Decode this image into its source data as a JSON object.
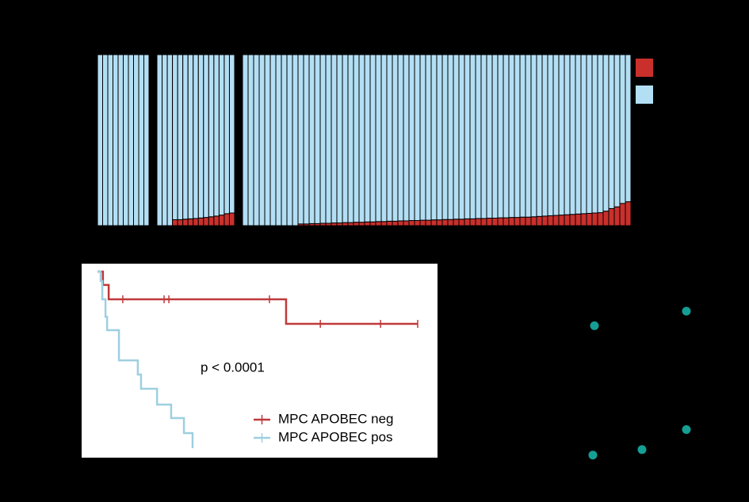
{
  "chart_data": [
    {
      "type": "stacked_bar",
      "categories": [
        null,
        null,
        null,
        null,
        null,
        null,
        null,
        null,
        null,
        null
      ],
      "ylim": [
        0,
        100
      ],
      "series": [
        {
          "color": "#c9302c",
          "values": [
            0,
            0,
            0,
            0,
            0,
            0,
            0,
            0,
            0,
            0
          ]
        },
        {
          "color": "#b3dff5",
          "values": [
            100,
            100,
            100,
            100,
            100,
            100,
            100,
            100,
            100,
            100
          ]
        }
      ]
    },
    {
      "type": "stacked_bar",
      "categories": [
        null,
        null,
        null,
        null,
        null,
        null,
        null,
        null,
        null,
        null,
        null,
        null,
        null,
        null,
        null
      ],
      "ylim": [
        0,
        100
      ],
      "series": [
        {
          "color": "#c9302c",
          "values": [
            0,
            0,
            0,
            3.5,
            3.5,
            3.8,
            4,
            4.2,
            4.5,
            4.8,
            5.2,
            5.6,
            6.2,
            7,
            7.4
          ]
        },
        {
          "color": "#b3dff5",
          "values": [
            100,
            100,
            100,
            96.5,
            96.5,
            96.2,
            96,
            95.8,
            95.5,
            95.2,
            94.8,
            94.4,
            93.8,
            93,
            92.6
          ]
        }
      ]
    },
    {
      "type": "stacked_bar",
      "categories": [
        null,
        null,
        null,
        null,
        null,
        null,
        null,
        null,
        null,
        null,
        null,
        null,
        null,
        null,
        null,
        null,
        null,
        null,
        null,
        null,
        null,
        null,
        null,
        null,
        null,
        null,
        null,
        null,
        null,
        null,
        null,
        null,
        null,
        null,
        null,
        null,
        null,
        null,
        null,
        null,
        null,
        null,
        null,
        null,
        null,
        null,
        null,
        null,
        null,
        null,
        null,
        null,
        null,
        null,
        null,
        null,
        null,
        null,
        null,
        null,
        null,
        null,
        null,
        null,
        null,
        null,
        null,
        null,
        null,
        null
      ],
      "ylim": [
        0,
        100
      ],
      "series": [
        {
          "color": "#c9302c",
          "values": [
            0,
            0,
            0,
            0,
            0,
            0,
            0,
            0,
            0,
            0,
            1,
            1,
            1.2,
            1.2,
            1.4,
            1.4,
            1.6,
            1.6,
            1.8,
            1.8,
            2,
            2,
            2.2,
            2.2,
            2.4,
            2.4,
            2.6,
            2.6,
            2.8,
            2.8,
            3,
            3,
            3.2,
            3.2,
            3.4,
            3.4,
            3.6,
            3.6,
            3.8,
            3.8,
            4,
            4,
            4.2,
            4.2,
            4.4,
            4.4,
            4.6,
            4.6,
            4.8,
            4.8,
            5,
            5,
            5.2,
            5.4,
            5.6,
            5.8,
            6,
            6.2,
            6.4,
            6.6,
            6.8,
            7,
            7.2,
            7.4,
            7.6,
            8.5,
            10,
            11,
            13,
            14
          ]
        },
        {
          "color": "#b3dff5",
          "values": [
            100,
            100,
            100,
            100,
            100,
            100,
            100,
            100,
            100,
            100,
            99,
            99,
            98.8,
            98.8,
            98.6,
            98.6,
            98.4,
            98.4,
            98.2,
            98.2,
            98,
            98,
            97.8,
            97.8,
            97.6,
            97.6,
            97.4,
            97.4,
            97.2,
            97.2,
            97,
            97,
            96.8,
            96.8,
            96.6,
            96.6,
            96.4,
            96.4,
            96.2,
            96.2,
            96,
            96,
            95.8,
            95.8,
            95.6,
            95.6,
            95.4,
            95.4,
            95.2,
            95.2,
            95,
            95,
            94.8,
            94.6,
            94.4,
            94.2,
            94,
            93.8,
            93.6,
            93.4,
            93.2,
            93,
            92.8,
            92.6,
            92.4,
            91.5,
            90,
            89,
            87,
            86
          ]
        }
      ]
    },
    {
      "type": "step",
      "xlim": [
        0,
        100
      ],
      "ylim": [
        0,
        1
      ],
      "annotation": "p < 0.0001",
      "legend": "lower right",
      "series": [
        {
          "name": "MPC APOBEC neg",
          "color": "#c0393b",
          "x": [
            0,
            1.7,
            3.5,
            58.9,
            100
          ],
          "values": [
            1,
            0.928,
            0.851,
            0.719,
            0.719
          ],
          "censor_x": [
            7.9,
            20.8,
            22.3,
            53.7,
            69.6,
            88.4,
            100
          ],
          "censor_y": [
            0.851,
            0.851,
            0.851,
            0.851,
            0.719,
            0.719,
            0.719
          ]
        },
        {
          "name": "MPC APOBEC pos",
          "color": "#9ecfe0",
          "x": [
            0,
            1,
            1.5,
            2.5,
            3,
            6.7,
            12.6,
            13.6,
            18.6,
            23,
            27,
            29.7
          ],
          "values": [
            1,
            0.949,
            0.851,
            0.757,
            0.685,
            0.523,
            0.447,
            0.37,
            0.285,
            0.213,
            0.132,
            0.051
          ]
        }
      ]
    },
    {
      "type": "scatter",
      "xlim": [
        0,
        10
      ],
      "ylim": [
        0,
        10
      ],
      "color": "#159e94",
      "x": [
        2.5,
        8.3,
        8.3,
        2.4,
        5.5
      ],
      "values": [
        8.2,
        9,
        2.5,
        1.1,
        1.4
      ]
    }
  ]
}
